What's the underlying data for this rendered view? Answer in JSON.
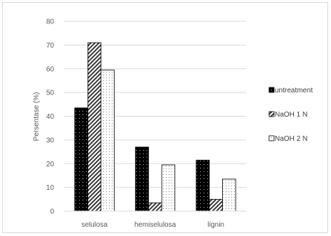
{
  "chart_data": {
    "type": "bar",
    "title": "",
    "xlabel": "",
    "ylabel": "Persentase (%)",
    "ylim": [
      0,
      80
    ],
    "yticks": [
      0,
      10,
      20,
      30,
      40,
      50,
      60,
      70,
      80
    ],
    "grid": true,
    "legend_position": "right",
    "categories": [
      "selulosa",
      "hemiselulosa",
      "lignin"
    ],
    "series": [
      {
        "name": "untreatment",
        "values": [
          43.5,
          27,
          21.5
        ],
        "pattern": "dots-on-black",
        "color": "#000000"
      },
      {
        "name": "NaOH 1 N",
        "values": [
          71,
          3.5,
          5
        ],
        "pattern": "diagonal-hatch",
        "color": "#404040"
      },
      {
        "name": "NaOH 2 N",
        "values": [
          59.5,
          19.5,
          13.5
        ],
        "pattern": "light-dots",
        "color": "#ffffff"
      }
    ]
  }
}
